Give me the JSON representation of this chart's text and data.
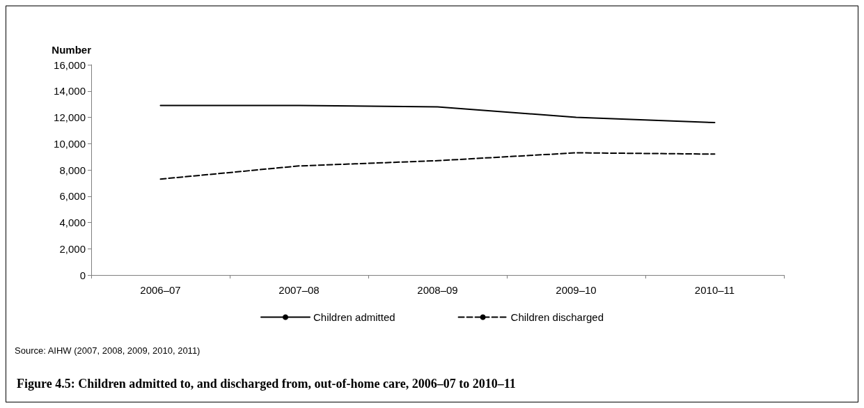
{
  "chart_data": {
    "type": "line",
    "title": "Figure 4.5: Children admitted to, and discharged from, out-of-home care, 2006–07 to 2010–11",
    "ylabel": "Number",
    "annotations": [
      "Source: AIHW (2007, 2008, 2009, 2010, 2011)"
    ],
    "categories": [
      "2006–07",
      "2007–08",
      "2008–09",
      "2009–10",
      "2010–11"
    ],
    "series": [
      {
        "name": "Children admitted",
        "color": "#000000",
        "line_style": "solid",
        "values": [
          12900,
          12900,
          12800,
          12000,
          11600
        ]
      },
      {
        "name": "Children discharged",
        "color": "#000000",
        "line_style": "dashed",
        "values": [
          7300,
          8300,
          8700,
          9300,
          9200
        ]
      }
    ],
    "ylim": [
      0,
      16000
    ],
    "yticks": [
      0,
      {
        "value": 2000,
        "label": "2,000"
      },
      {
        "value": 4000,
        "label": "4,000"
      },
      {
        "value": 6000,
        "label": "6,000"
      },
      {
        "value": 8000,
        "label": "8,000"
      },
      {
        "value": 10000,
        "label": "10,000"
      },
      {
        "value": 12000,
        "label": "12,000"
      },
      {
        "value": 14000,
        "label": "14,000"
      },
      {
        "value": 16000,
        "label": "16,000"
      }
    ],
    "grid": false,
    "legend": "bottom",
    "marker": "none"
  }
}
